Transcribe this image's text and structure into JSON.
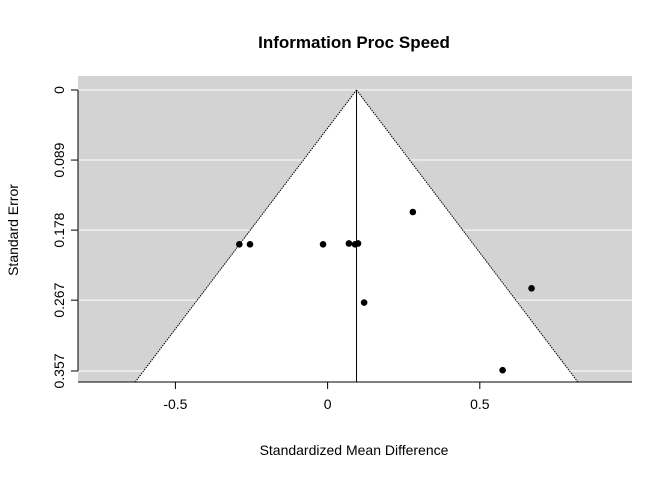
{
  "chart_data": {
    "type": "scatter",
    "subtype": "funnel",
    "title": "Information Proc Speed",
    "xlabel": "Standardized Mean Difference",
    "ylabel": "Standard Error",
    "xlim": [
      -0.82,
      1.0
    ],
    "ylim": [
      0.357,
      0.0
    ],
    "y_inverted": true,
    "x_ticks": [
      -0.5,
      0,
      0.5
    ],
    "x_tick_labels": [
      "-0.5",
      "0",
      "0.5"
    ],
    "y_ticks": [
      0,
      0.089,
      0.178,
      0.267,
      0.357
    ],
    "y_tick_labels": [
      "0",
      "0.089",
      "0.178",
      "0.267",
      "0.357"
    ],
    "gridlines": "horizontal",
    "background_color": "#d3d3d3",
    "funnel_color": "#ffffff",
    "pooled_estimate": 0.095,
    "funnel_z": 1.96,
    "points": [
      {
        "x": -0.29,
        "y": 0.196
      },
      {
        "x": -0.255,
        "y": 0.196
      },
      {
        "x": -0.015,
        "y": 0.196
      },
      {
        "x": 0.07,
        "y": 0.195
      },
      {
        "x": 0.09,
        "y": 0.196
      },
      {
        "x": 0.1,
        "y": 0.195
      },
      {
        "x": 0.12,
        "y": 0.27
      },
      {
        "x": 0.28,
        "y": 0.155
      },
      {
        "x": 0.575,
        "y": 0.356
      },
      {
        "x": 0.67,
        "y": 0.252
      }
    ]
  }
}
